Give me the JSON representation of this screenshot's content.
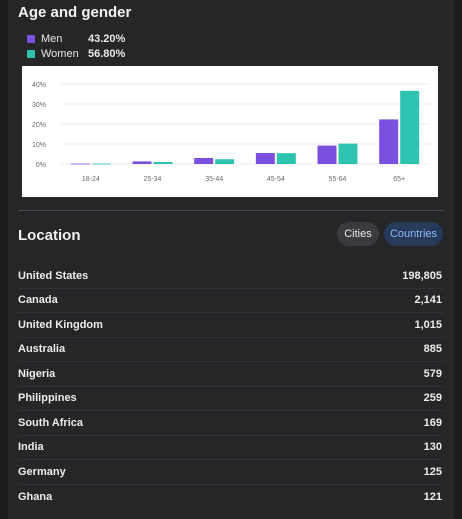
{
  "age_gender": {
    "title": "Age and gender",
    "legend": [
      {
        "name": "Men",
        "value": "43.20%",
        "color": "#7b4fe0"
      },
      {
        "name": "Women",
        "value": "56.80%",
        "color": "#2ec4b0"
      }
    ]
  },
  "chart_data": {
    "type": "bar",
    "categories": [
      "18-24",
      "25-34",
      "35-44",
      "45-54",
      "55-64",
      "65+"
    ],
    "series": [
      {
        "name": "Men",
        "values": [
          0.2,
          1.3,
          3.0,
          5.5,
          9.2,
          22.3
        ],
        "color": "#7b4fe0"
      },
      {
        "name": "Women",
        "values": [
          0.2,
          1.0,
          2.4,
          5.4,
          10.2,
          36.6
        ],
        "color": "#2ec4b0"
      }
    ],
    "ylim": [
      0,
      40
    ],
    "yticks": [
      0,
      10,
      20,
      30,
      40
    ],
    "ytick_labels": [
      "0%",
      "10%",
      "20%",
      "30%",
      "40%"
    ],
    "grid": true
  },
  "location": {
    "title": "Location",
    "tabs": [
      {
        "label": "Cities",
        "active": false
      },
      {
        "label": "Countries",
        "active": true
      }
    ],
    "countries": [
      {
        "name": "United States",
        "count": "198,805"
      },
      {
        "name": "Canada",
        "count": "2,141"
      },
      {
        "name": "United Kingdom",
        "count": "1,015"
      },
      {
        "name": "Australia",
        "count": "885"
      },
      {
        "name": "Nigeria",
        "count": "579"
      },
      {
        "name": "Philippines",
        "count": "259"
      },
      {
        "name": "South Africa",
        "count": "169"
      },
      {
        "name": "India",
        "count": "130"
      },
      {
        "name": "Germany",
        "count": "125"
      },
      {
        "name": "Ghana",
        "count": "121"
      }
    ]
  }
}
